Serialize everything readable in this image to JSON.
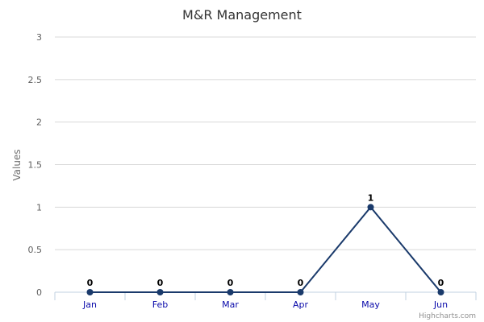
{
  "chart_data": {
    "type": "line",
    "title": "M&R Management",
    "xlabel": "",
    "ylabel": "Values",
    "categories": [
      "Jan",
      "Feb",
      "Mar",
      "Apr",
      "May",
      "Jun"
    ],
    "series": [
      {
        "values": [
          0,
          0,
          0,
          0,
          1,
          0
        ]
      }
    ],
    "ylim": [
      0,
      3
    ],
    "yticks": [
      "0",
      "0.5",
      "1",
      "1.5",
      "2",
      "2.5",
      "3"
    ],
    "data_labels": [
      "0",
      "0",
      "0",
      "0",
      "1",
      "0"
    ],
    "grid": true,
    "legend": "none",
    "line_color": "#1a3a6b",
    "marker_color": "#1a3a6b"
  },
  "credit": "Highcharts.com"
}
